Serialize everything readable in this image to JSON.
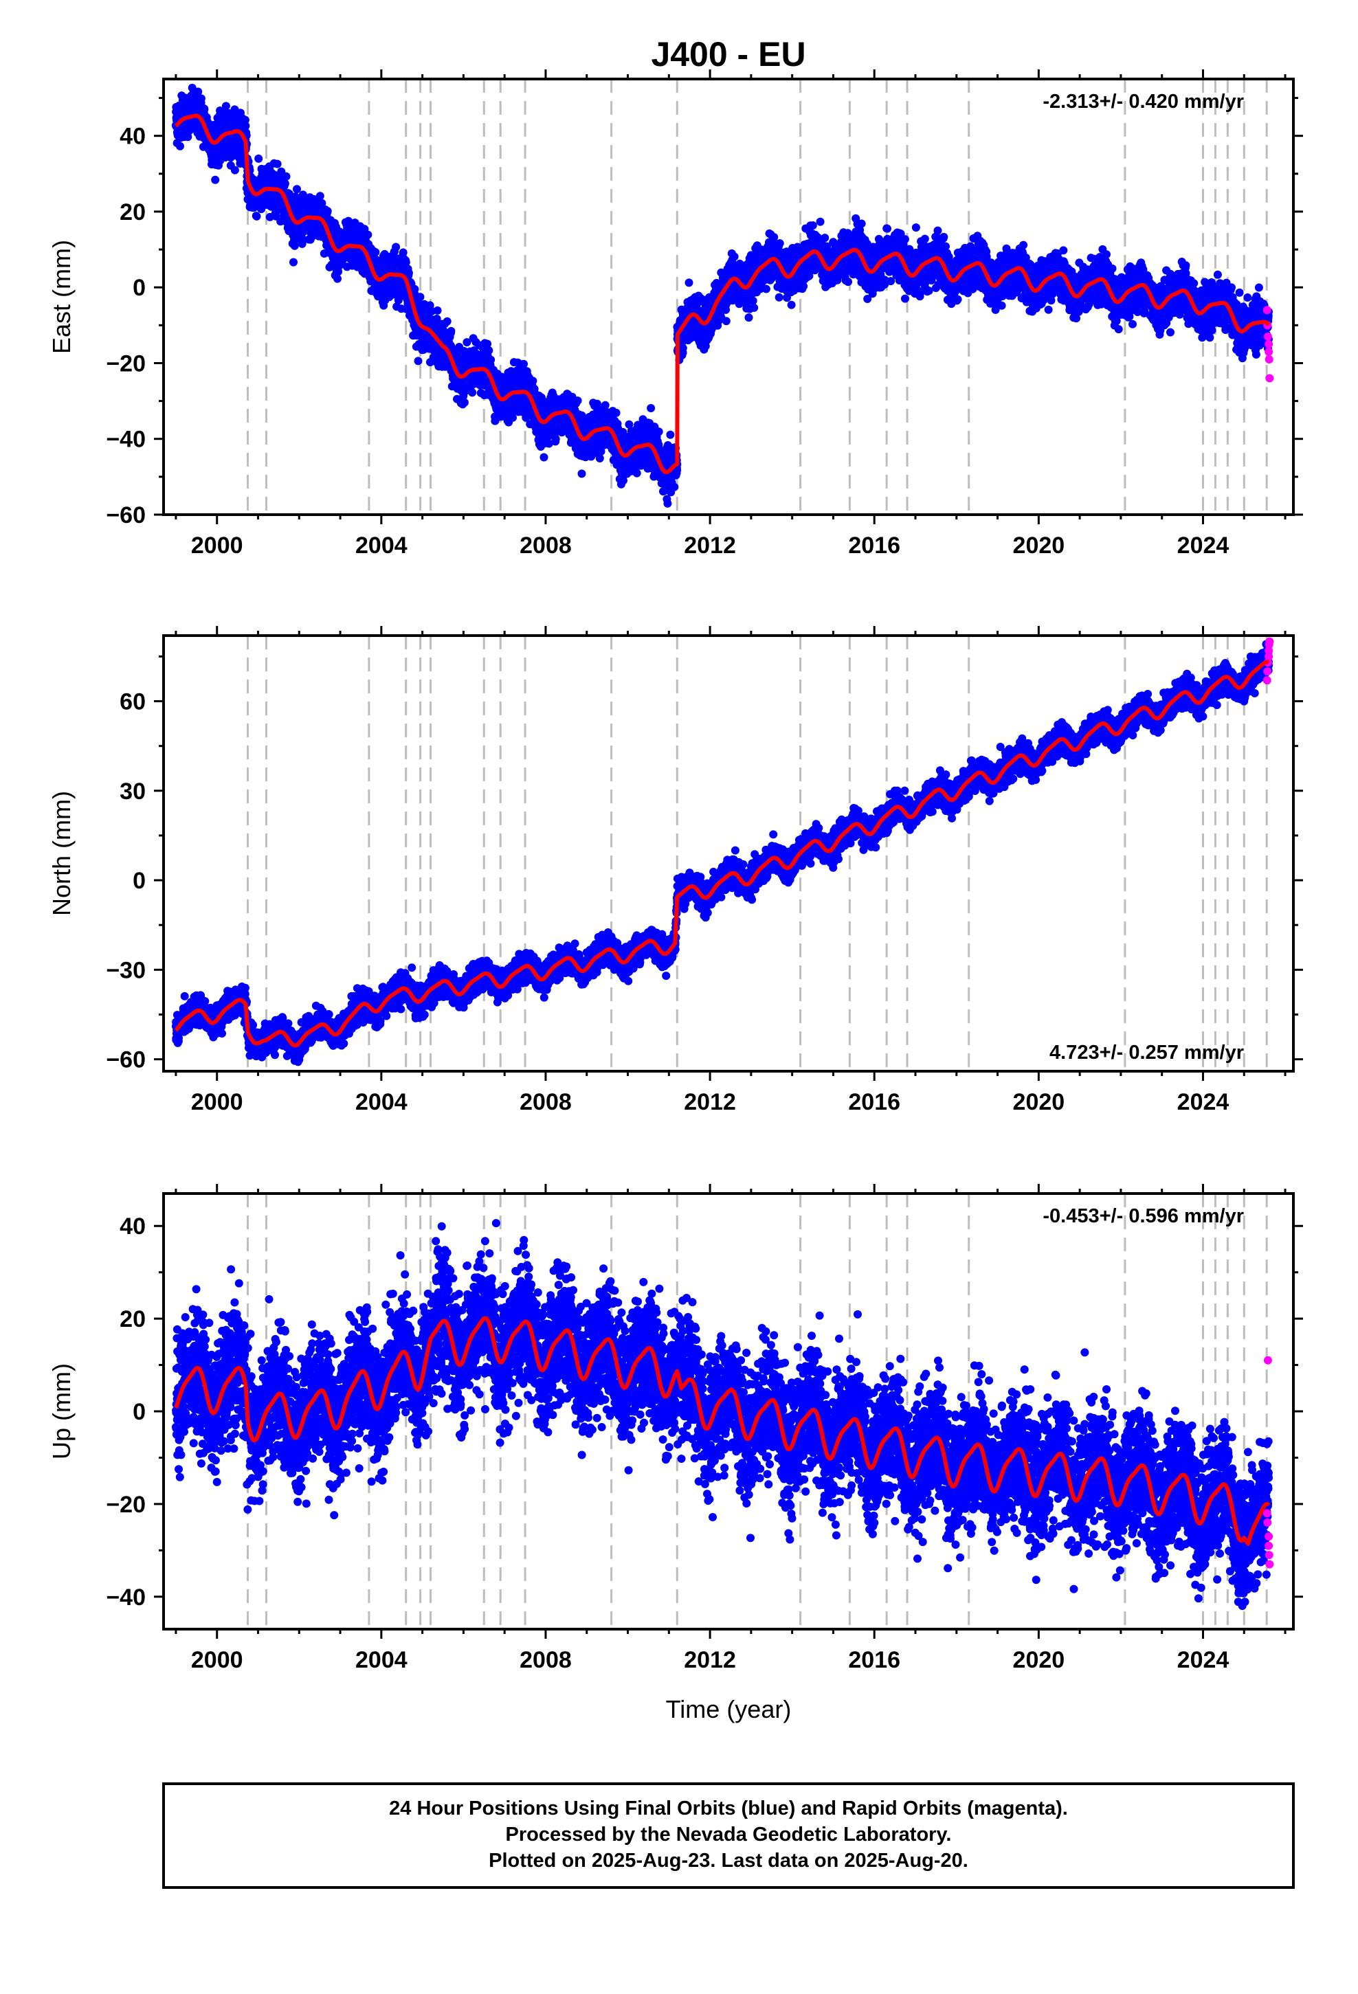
{
  "figure": {
    "title": "J400 - EU",
    "footer": [
      "24 Hour Positions Using Final Orbits (blue) and Rapid Orbits (magenta).",
      "Processed by the Nevada Geodetic Laboratory.",
      "Plotted on 2025-Aug-23. Last data on 2025-Aug-20."
    ],
    "colors": {
      "final": "#0000ff",
      "rapid": "#ff00ff",
      "model": "#ff0000",
      "steps": "#bdbdbd"
    }
  },
  "chart_data": [
    {
      "type": "scatter",
      "panel": "east",
      "title": "J400 - EU",
      "ylabel": "East (mm)",
      "xlabel": "",
      "xlim": [
        1998.7,
        2026.2
      ],
      "ylim": [
        -60,
        55
      ],
      "xticks": [
        2000,
        2004,
        2008,
        2012,
        2016,
        2020,
        2024
      ],
      "yticks": [
        -60,
        -40,
        -20,
        0,
        20,
        40
      ],
      "rate_label": "-2.313+/- 0.420 mm/yr",
      "rate_position": "top-right",
      "grid": false,
      "step_lines": [
        2000.75,
        2001.2,
        2003.7,
        2004.6,
        2004.95,
        2005.2,
        2006.5,
        2006.9,
        2007.5,
        2009.6,
        2011.2,
        2014.2,
        2015.4,
        2016.3,
        2016.8,
        2018.3,
        2022.1,
        2024.0,
        2024.3,
        2024.6,
        2025.0,
        2025.55
      ],
      "series": [
        {
          "name": "Final Orbits (blue)",
          "kind": "points",
          "trend": [
            [
              1999.0,
              46
            ],
            [
              2000.7,
              37
            ],
            [
              2000.75,
              29
            ],
            [
              2004.6,
              0
            ],
            [
              2005.0,
              -8
            ],
            [
              2005.5,
              -18
            ],
            [
              2008.0,
              -33
            ],
            [
              2011.2,
              -47
            ],
            [
              2011.2,
              -14
            ],
            [
              2013.0,
              4
            ],
            [
              2015.0,
              8
            ],
            [
              2017.0,
              6
            ],
            [
              2020.0,
              2
            ],
            [
              2024.0,
              -4
            ],
            [
              2025.6,
              -12
            ]
          ],
          "seasonal_amplitude": 2.5,
          "scatter": 2.8
        },
        {
          "name": "Rapid Orbits (magenta)",
          "kind": "points",
          "points": [
            [
              2025.56,
              -6
            ],
            [
              2025.57,
              -10
            ],
            [
              2025.58,
              -13
            ],
            [
              2025.6,
              -15
            ],
            [
              2025.6,
              -17
            ],
            [
              2025.61,
              -19
            ],
            [
              2025.62,
              -24
            ]
          ]
        },
        {
          "name": "model",
          "kind": "line",
          "trend": [
            [
              1999.0,
              45
            ],
            [
              2000.7,
              38
            ],
            [
              2000.75,
              29
            ],
            [
              2004.6,
              0
            ],
            [
              2005.0,
              -8
            ],
            [
              2005.5,
              -18
            ],
            [
              2008.0,
              -33
            ],
            [
              2011.2,
              -47
            ],
            [
              2011.2,
              -13
            ],
            [
              2013.0,
              4
            ],
            [
              2015.0,
              8
            ],
            [
              2017.0,
              6
            ],
            [
              2020.0,
              2
            ],
            [
              2024.0,
              -4
            ],
            [
              2025.6,
              -12
            ]
          ],
          "seasonal_amplitude": 2.5
        }
      ]
    },
    {
      "type": "scatter",
      "panel": "north",
      "title": "",
      "ylabel": "North (mm)",
      "xlabel": "",
      "xlim": [
        1998.7,
        2026.2
      ],
      "ylim": [
        -64,
        82
      ],
      "xticks": [
        2000,
        2004,
        2008,
        2012,
        2016,
        2020,
        2024
      ],
      "yticks": [
        -60,
        -30,
        0,
        30,
        60
      ],
      "rate_label": "4.723+/- 0.257 mm/yr",
      "rate_position": "bottom-right",
      "grid": false,
      "step_lines": [
        2000.75,
        2001.2,
        2003.7,
        2004.6,
        2004.95,
        2005.2,
        2006.5,
        2006.9,
        2007.5,
        2009.6,
        2011.2,
        2014.2,
        2015.4,
        2016.3,
        2016.8,
        2018.3,
        2022.1,
        2024.0,
        2024.3,
        2024.6,
        2025.0,
        2025.55
      ],
      "series": [
        {
          "name": "Final Orbits (blue)",
          "kind": "points",
          "trend": [
            [
              1999.0,
              -48
            ],
            [
              2000.7,
              -42
            ],
            [
              2000.75,
              -50
            ],
            [
              2001.2,
              -54
            ],
            [
              2002.5,
              -51
            ],
            [
              2003.2,
              -47
            ],
            [
              2004.0,
              -40
            ],
            [
              2008.0,
              -30
            ],
            [
              2011.15,
              -21
            ],
            [
              2011.2,
              -6
            ],
            [
              2013.0,
              2
            ],
            [
              2016.0,
              19
            ],
            [
              2020.0,
              42
            ],
            [
              2024.0,
              63
            ],
            [
              2025.6,
              71
            ]
          ],
          "seasonal_amplitude": 2.5,
          "scatter": 2.2
        },
        {
          "name": "Rapid Orbits (magenta)",
          "kind": "points",
          "points": [
            [
              2025.56,
              67
            ],
            [
              2025.57,
              70
            ],
            [
              2025.58,
              73
            ],
            [
              2025.6,
              75
            ],
            [
              2025.6,
              77
            ],
            [
              2025.61,
              79
            ],
            [
              2025.62,
              80
            ]
          ]
        },
        {
          "name": "model",
          "kind": "line",
          "trend": [
            [
              1999.0,
              -48
            ],
            [
              2000.7,
              -42
            ],
            [
              2000.75,
              -50
            ],
            [
              2001.2,
              -54
            ],
            [
              2002.5,
              -51
            ],
            [
              2003.2,
              -47
            ],
            [
              2004.0,
              -40
            ],
            [
              2008.0,
              -30
            ],
            [
              2011.15,
              -21
            ],
            [
              2011.2,
              -6
            ],
            [
              2013.0,
              2
            ],
            [
              2016.0,
              19
            ],
            [
              2020.0,
              42
            ],
            [
              2024.0,
              63
            ],
            [
              2025.6,
              71
            ]
          ],
          "seasonal_amplitude": 2.5
        }
      ]
    },
    {
      "type": "scatter",
      "panel": "up",
      "title": "",
      "ylabel": "Up (mm)",
      "xlabel": "Time (year)",
      "xlim": [
        1998.7,
        2026.2
      ],
      "ylim": [
        -47,
        47
      ],
      "xticks": [
        2000,
        2004,
        2008,
        2012,
        2016,
        2020,
        2024
      ],
      "yticks": [
        -40,
        -20,
        0,
        20,
        40
      ],
      "rate_label": "-0.453+/- 0.596 mm/yr",
      "rate_position": "top-right",
      "grid": false,
      "step_lines": [
        2000.75,
        2001.2,
        2003.7,
        2004.6,
        2004.95,
        2005.2,
        2006.5,
        2006.9,
        2007.5,
        2009.6,
        2011.2,
        2014.2,
        2015.4,
        2016.3,
        2016.8,
        2018.3,
        2022.1,
        2024.0,
        2024.3,
        2024.6,
        2025.0,
        2025.55
      ],
      "series": [
        {
          "name": "Final Orbits (blue)",
          "kind": "points",
          "trend": [
            [
              1999.0,
              5
            ],
            [
              2000.7,
              5
            ],
            [
              2000.75,
              -1
            ],
            [
              2002.5,
              0
            ],
            [
              2004.9,
              10
            ],
            [
              2005.2,
              15
            ],
            [
              2007.0,
              16
            ],
            [
              2011.2,
              8
            ],
            [
              2011.3,
              3
            ],
            [
              2014.0,
              -3
            ],
            [
              2018.0,
              -11
            ],
            [
              2022.0,
              -15
            ],
            [
              2024.5,
              -20
            ],
            [
              2025.0,
              -23
            ],
            [
              2025.1,
              -27
            ],
            [
              2025.6,
              -24
            ]
          ],
          "seasonal_amplitude": 4.5,
          "scatter": 6.5
        },
        {
          "name": "Rapid Orbits (magenta)",
          "kind": "points",
          "points": [
            [
              2025.58,
              11
            ],
            [
              2025.56,
              -22
            ],
            [
              2025.57,
              -24
            ],
            [
              2025.6,
              -27
            ],
            [
              2025.6,
              -29
            ],
            [
              2025.61,
              -31
            ],
            [
              2025.62,
              -33
            ]
          ]
        },
        {
          "name": "model",
          "kind": "line",
          "trend": [
            [
              1999.0,
              5
            ],
            [
              2000.7,
              5
            ],
            [
              2000.75,
              -1
            ],
            [
              2002.5,
              0
            ],
            [
              2004.9,
              10
            ],
            [
              2005.2,
              15
            ],
            [
              2007.0,
              16
            ],
            [
              2011.2,
              8
            ],
            [
              2011.3,
              3
            ],
            [
              2014.0,
              -3
            ],
            [
              2018.0,
              -11
            ],
            [
              2022.0,
              -15
            ],
            [
              2024.5,
              -20
            ],
            [
              2025.0,
              -23
            ],
            [
              2025.1,
              -27
            ],
            [
              2025.6,
              -24
            ]
          ],
          "seasonal_amplitude": 4.5
        }
      ]
    }
  ]
}
